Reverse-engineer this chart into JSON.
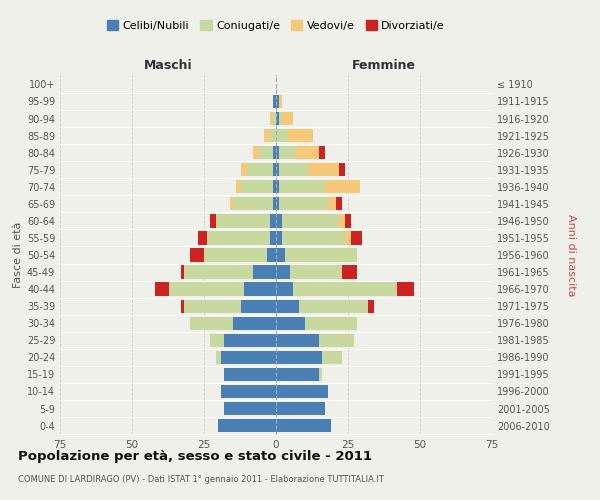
{
  "age_groups": [
    "0-4",
    "5-9",
    "10-14",
    "15-19",
    "20-24",
    "25-29",
    "30-34",
    "35-39",
    "40-44",
    "45-49",
    "50-54",
    "55-59",
    "60-64",
    "65-69",
    "70-74",
    "75-79",
    "80-84",
    "85-89",
    "90-94",
    "95-99",
    "100+"
  ],
  "birth_years": [
    "2006-2010",
    "2001-2005",
    "1996-2000",
    "1991-1995",
    "1986-1990",
    "1981-1985",
    "1976-1980",
    "1971-1975",
    "1966-1970",
    "1961-1965",
    "1956-1960",
    "1951-1955",
    "1946-1950",
    "1941-1945",
    "1936-1940",
    "1931-1935",
    "1926-1930",
    "1921-1925",
    "1916-1920",
    "1911-1915",
    "≤ 1910"
  ],
  "maschi": {
    "celibe": [
      20,
      18,
      19,
      18,
      19,
      18,
      15,
      12,
      11,
      8,
      3,
      2,
      2,
      1,
      1,
      1,
      1,
      0,
      0,
      1,
      0
    ],
    "coniugato": [
      0,
      0,
      0,
      0,
      2,
      5,
      15,
      20,
      26,
      24,
      22,
      22,
      19,
      14,
      11,
      9,
      5,
      2,
      1,
      0,
      0
    ],
    "vedovo": [
      0,
      0,
      0,
      0,
      0,
      0,
      0,
      0,
      0,
      0,
      0,
      0,
      0,
      1,
      2,
      2,
      2,
      2,
      1,
      0,
      0
    ],
    "divorziato": [
      0,
      0,
      0,
      0,
      0,
      0,
      0,
      1,
      5,
      1,
      5,
      3,
      2,
      0,
      0,
      0,
      0,
      0,
      0,
      0,
      0
    ]
  },
  "femmine": {
    "nubile": [
      19,
      17,
      18,
      15,
      16,
      15,
      10,
      8,
      6,
      5,
      3,
      2,
      2,
      1,
      1,
      1,
      1,
      0,
      1,
      1,
      0
    ],
    "coniugata": [
      0,
      0,
      0,
      1,
      7,
      12,
      18,
      24,
      36,
      18,
      25,
      22,
      20,
      17,
      16,
      10,
      6,
      4,
      1,
      0,
      0
    ],
    "vedova": [
      0,
      0,
      0,
      0,
      0,
      0,
      0,
      0,
      0,
      0,
      0,
      2,
      2,
      3,
      12,
      11,
      8,
      9,
      4,
      1,
      0
    ],
    "divorziata": [
      0,
      0,
      0,
      0,
      0,
      0,
      0,
      2,
      6,
      5,
      0,
      4,
      2,
      2,
      0,
      2,
      2,
      0,
      0,
      0,
      0
    ]
  },
  "colors": {
    "celibe": "#4a7fb5",
    "coniugato": "#c8d9a0",
    "vedovo": "#f5c87a",
    "divorziato": "#cc2222"
  },
  "xlim": 75,
  "title": "Popolazione per età, sesso e stato civile - 2011",
  "subtitle": "COMUNE DI LARDIRAGO (PV) - Dati ISTAT 1° gennaio 2011 - Elaborazione TUTTITALIA.IT",
  "ylabel_left": "Fasce di età",
  "ylabel_right": "Anni di nascita",
  "xlabel_left": "Maschi",
  "xlabel_right": "Femmine",
  "legend_labels": [
    "Celibi/Nubili",
    "Coniugati/e",
    "Vedovi/e",
    "Divorziati/e"
  ],
  "bg_color": "#f0f0eb",
  "grid_color": "#cccccc"
}
